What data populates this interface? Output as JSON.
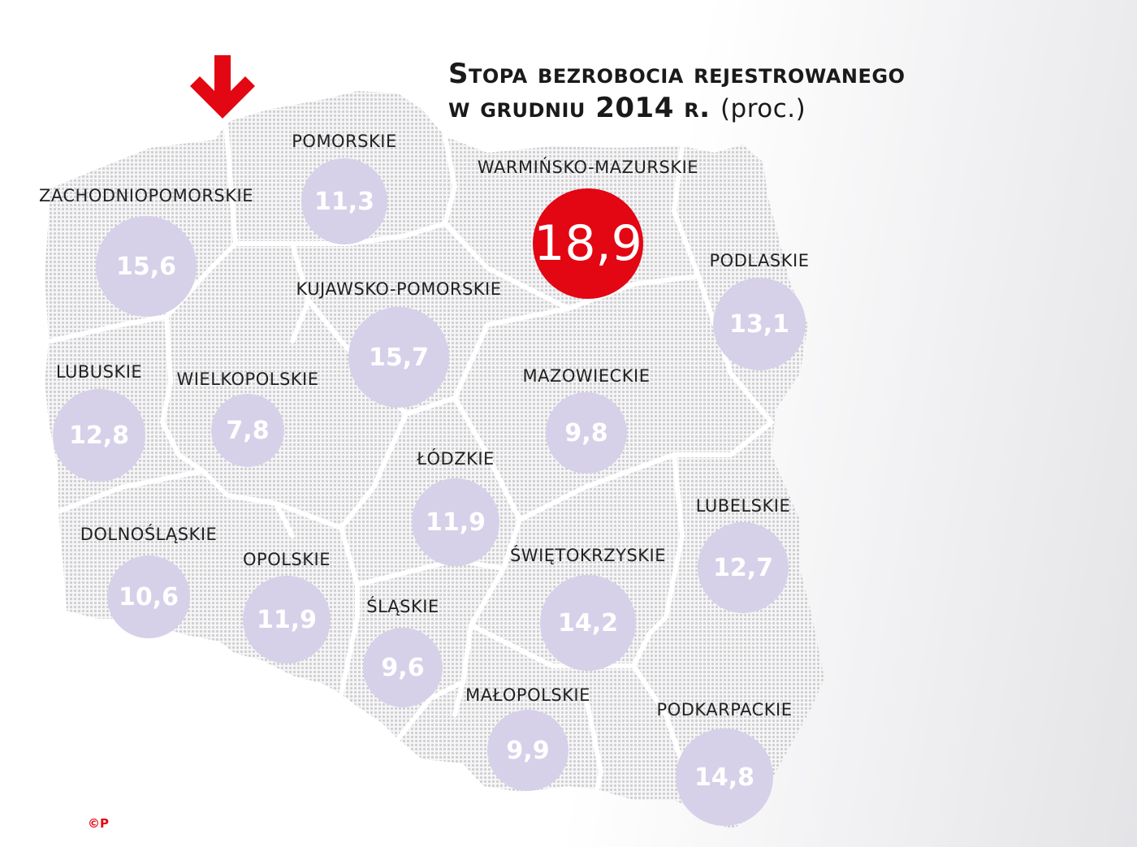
{
  "title": {
    "line1": "Stopa bezrobocia rejestrowanego",
    "line2": "w grudniu 2014 r.",
    "unit": "(proc.)"
  },
  "colors": {
    "regular_bubble": "#d6d1e9",
    "highlight_bubble": "#e30613",
    "arrow": "#e30613",
    "map_dots": "#cfcfd3",
    "borders": "#ffffff"
  },
  "arrow_icon": "down-arrow-icon",
  "copyright": "©P",
  "regions": [
    {
      "id": "pomorskie",
      "name": "POMORSKIE",
      "value": "11,3",
      "highlight": false
    },
    {
      "id": "warminsko-mazurskie",
      "name": "WARMIŃSKO-MAZURSKIE",
      "value": "18,9",
      "highlight": true
    },
    {
      "id": "zachodniopomorskie",
      "name": "ZACHODNIOPOMORSKIE",
      "value": "15,6",
      "highlight": false
    },
    {
      "id": "podlaskie",
      "name": "PODLASKIE",
      "value": "13,1",
      "highlight": false
    },
    {
      "id": "kujawsko-pomorskie",
      "name": "KUJAWSKO-POMORSKIE",
      "value": "15,7",
      "highlight": false
    },
    {
      "id": "lubuskie",
      "name": "LUBUSKIE",
      "value": "12,8",
      "highlight": false
    },
    {
      "id": "wielkopolskie",
      "name": "WIELKOPOLSKIE",
      "value": "7,8",
      "highlight": false
    },
    {
      "id": "mazowieckie",
      "name": "MAZOWIECKIE",
      "value": "9,8",
      "highlight": false
    },
    {
      "id": "lodzkie",
      "name": "ŁÓDZKIE",
      "value": "11,9",
      "highlight": false
    },
    {
      "id": "lubelskie",
      "name": "LUBELSKIE",
      "value": "12,7",
      "highlight": false
    },
    {
      "id": "dolnoslaskie",
      "name": "DOLNOŚLĄSKIE",
      "value": "10,6",
      "highlight": false
    },
    {
      "id": "opolskie",
      "name": "OPOLSKIE",
      "value": "11,9",
      "highlight": false
    },
    {
      "id": "swietokrzyskie",
      "name": "ŚWIĘTOKRZYSKIE",
      "value": "14,2",
      "highlight": false
    },
    {
      "id": "slaskie",
      "name": "ŚLĄSKIE",
      "value": "9,6",
      "highlight": false
    },
    {
      "id": "malopolskie",
      "name": "MAŁOPOLSKIE",
      "value": "9,9",
      "highlight": false
    },
    {
      "id": "podkarpackie",
      "name": "PODKARPACKIE",
      "value": "14,8",
      "highlight": false
    }
  ]
}
